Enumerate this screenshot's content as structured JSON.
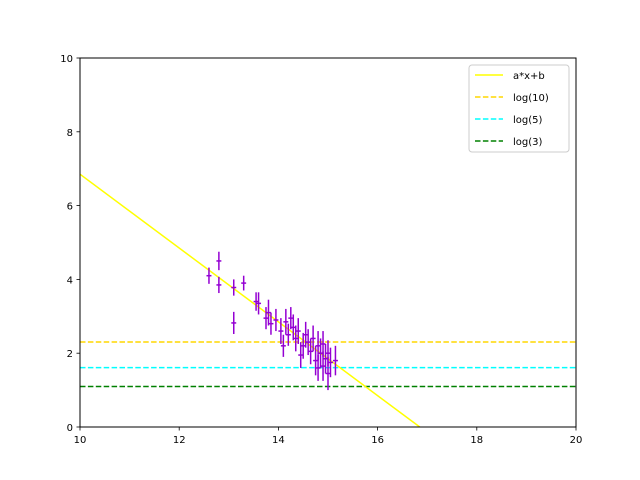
{
  "chart_data": {
    "type": "scatter",
    "title": "",
    "xlabel": "",
    "ylabel": "",
    "xlim": [
      10,
      20
    ],
    "ylim": [
      0,
      10
    ],
    "xticks": [
      "10",
      "12",
      "14",
      "16",
      "18",
      "20"
    ],
    "yticks": [
      "0",
      "2",
      "4",
      "6",
      "8",
      "10"
    ],
    "grid": false,
    "legend_position": "top-right",
    "colors": {
      "fit": "#ffff00",
      "log10": "#ffd700",
      "log5": "#00ffff",
      "log3": "#008000",
      "points": "#9400d3"
    },
    "fit_line": {
      "name": "a*x+b",
      "x": [
        10,
        16.85
      ],
      "y": [
        6.85,
        0
      ]
    },
    "hlines": [
      {
        "name": "log(10)",
        "y": 2.3026
      },
      {
        "name": "log(5)",
        "y": 1.6094
      },
      {
        "name": "log(3)",
        "y": 1.0986
      }
    ],
    "series": [
      {
        "name": "",
        "points": [
          {
            "x": 12.6,
            "y": 4.1,
            "yerr": 0.22,
            "xerr": 0.05
          },
          {
            "x": 12.8,
            "y": 4.5,
            "yerr": 0.25,
            "xerr": 0.05
          },
          {
            "x": 12.8,
            "y": 3.85,
            "yerr": 0.22,
            "xerr": 0.05
          },
          {
            "x": 13.1,
            "y": 3.78,
            "yerr": 0.22,
            "xerr": 0.05
          },
          {
            "x": 13.1,
            "y": 2.82,
            "yerr": 0.3,
            "xerr": 0.05
          },
          {
            "x": 13.3,
            "y": 3.9,
            "yerr": 0.2,
            "xerr": 0.05
          },
          {
            "x": 13.55,
            "y": 3.4,
            "yerr": 0.25,
            "xerr": 0.05
          },
          {
            "x": 13.6,
            "y": 3.35,
            "yerr": 0.3,
            "xerr": 0.05
          },
          {
            "x": 13.75,
            "y": 2.95,
            "yerr": 0.3,
            "xerr": 0.05
          },
          {
            "x": 13.8,
            "y": 3.1,
            "yerr": 0.35,
            "xerr": 0.05
          },
          {
            "x": 13.85,
            "y": 2.8,
            "yerr": 0.3,
            "xerr": 0.05
          },
          {
            "x": 13.95,
            "y": 2.9,
            "yerr": 0.3,
            "xerr": 0.05
          },
          {
            "x": 14.05,
            "y": 2.6,
            "yerr": 0.35,
            "xerr": 0.05
          },
          {
            "x": 14.1,
            "y": 2.2,
            "yerr": 0.3,
            "xerr": 0.05
          },
          {
            "x": 14.15,
            "y": 2.85,
            "yerr": 0.35,
            "xerr": 0.05
          },
          {
            "x": 14.2,
            "y": 2.5,
            "yerr": 0.3,
            "xerr": 0.05
          },
          {
            "x": 14.25,
            "y": 2.95,
            "yerr": 0.3,
            "xerr": 0.05
          },
          {
            "x": 14.3,
            "y": 2.7,
            "yerr": 0.35,
            "xerr": 0.05
          },
          {
            "x": 14.35,
            "y": 2.4,
            "yerr": 0.35,
            "xerr": 0.05
          },
          {
            "x": 14.4,
            "y": 2.6,
            "yerr": 0.35,
            "xerr": 0.05
          },
          {
            "x": 14.45,
            "y": 1.95,
            "yerr": 0.35,
            "xerr": 0.05
          },
          {
            "x": 14.5,
            "y": 2.2,
            "yerr": 0.35,
            "xerr": 0.05
          },
          {
            "x": 14.55,
            "y": 2.5,
            "yerr": 0.35,
            "xerr": 0.05
          },
          {
            "x": 14.6,
            "y": 2.3,
            "yerr": 0.35,
            "xerr": 0.05
          },
          {
            "x": 14.65,
            "y": 2.05,
            "yerr": 0.35,
            "xerr": 0.05
          },
          {
            "x": 14.7,
            "y": 2.4,
            "yerr": 0.35,
            "xerr": 0.05
          },
          {
            "x": 14.75,
            "y": 1.8,
            "yerr": 0.4,
            "xerr": 0.05
          },
          {
            "x": 14.8,
            "y": 2.2,
            "yerr": 0.4,
            "xerr": 0.05
          },
          {
            "x": 14.8,
            "y": 1.6,
            "yerr": 0.35,
            "xerr": 0.05
          },
          {
            "x": 14.85,
            "y": 2.0,
            "yerr": 0.4,
            "xerr": 0.05
          },
          {
            "x": 14.9,
            "y": 1.65,
            "yerr": 0.4,
            "xerr": 0.05
          },
          {
            "x": 14.9,
            "y": 2.25,
            "yerr": 0.35,
            "xerr": 0.05
          },
          {
            "x": 14.95,
            "y": 1.85,
            "yerr": 0.4,
            "xerr": 0.05
          },
          {
            "x": 15.0,
            "y": 1.45,
            "yerr": 0.45,
            "xerr": 0.05
          },
          {
            "x": 15.0,
            "y": 2.0,
            "yerr": 0.35,
            "xerr": 0.05
          },
          {
            "x": 15.05,
            "y": 1.75,
            "yerr": 0.4,
            "xerr": 0.05
          },
          {
            "x": 15.15,
            "y": 1.8,
            "yerr": 0.4,
            "xerr": 0.05
          }
        ]
      }
    ]
  }
}
